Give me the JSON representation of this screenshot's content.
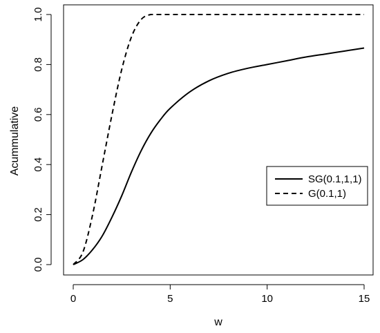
{
  "chart_data": {
    "type": "line",
    "title": "",
    "xlabel": "w",
    "ylabel": "Acummulative",
    "xlim": [
      0,
      15
    ],
    "ylim": [
      0,
      1
    ],
    "x_ticks": [
      0,
      5,
      10,
      15
    ],
    "y_ticks": [
      0.0,
      0.2,
      0.4,
      0.6,
      0.8,
      1.0
    ],
    "x_tick_labels": [
      "0",
      "5",
      "10",
      "15"
    ],
    "y_tick_labels": [
      "0.0",
      "0.2",
      "0.4",
      "0.6",
      "0.8",
      "1.0"
    ],
    "grid": false,
    "legend_position": "right",
    "series": [
      {
        "name": "SG(0.1,1,1)",
        "line_style": "solid",
        "color": "#000000",
        "x": [
          0,
          0.5,
          1,
          1.5,
          2,
          2.5,
          3,
          3.5,
          4,
          4.5,
          5,
          6,
          7,
          8,
          9,
          10,
          11,
          12,
          13,
          14,
          15
        ],
        "y": [
          0,
          0.02,
          0.06,
          0.115,
          0.19,
          0.275,
          0.37,
          0.455,
          0.525,
          0.58,
          0.625,
          0.69,
          0.735,
          0.765,
          0.785,
          0.8,
          0.815,
          0.83,
          0.842,
          0.854,
          0.866
        ]
      },
      {
        "name": "G(0.1,1)",
        "line_style": "dashed",
        "color": "#000000",
        "x": [
          0,
          0.5,
          1,
          1.5,
          2,
          2.5,
          3,
          3.5,
          4,
          4.5,
          5,
          6,
          8,
          10,
          12,
          15
        ],
        "y": [
          0,
          0.05,
          0.2,
          0.4,
          0.6,
          0.78,
          0.91,
          0.98,
          1.0,
          1.0,
          1.0,
          1.0,
          1.0,
          1.0,
          1.0,
          1.0
        ]
      }
    ]
  }
}
